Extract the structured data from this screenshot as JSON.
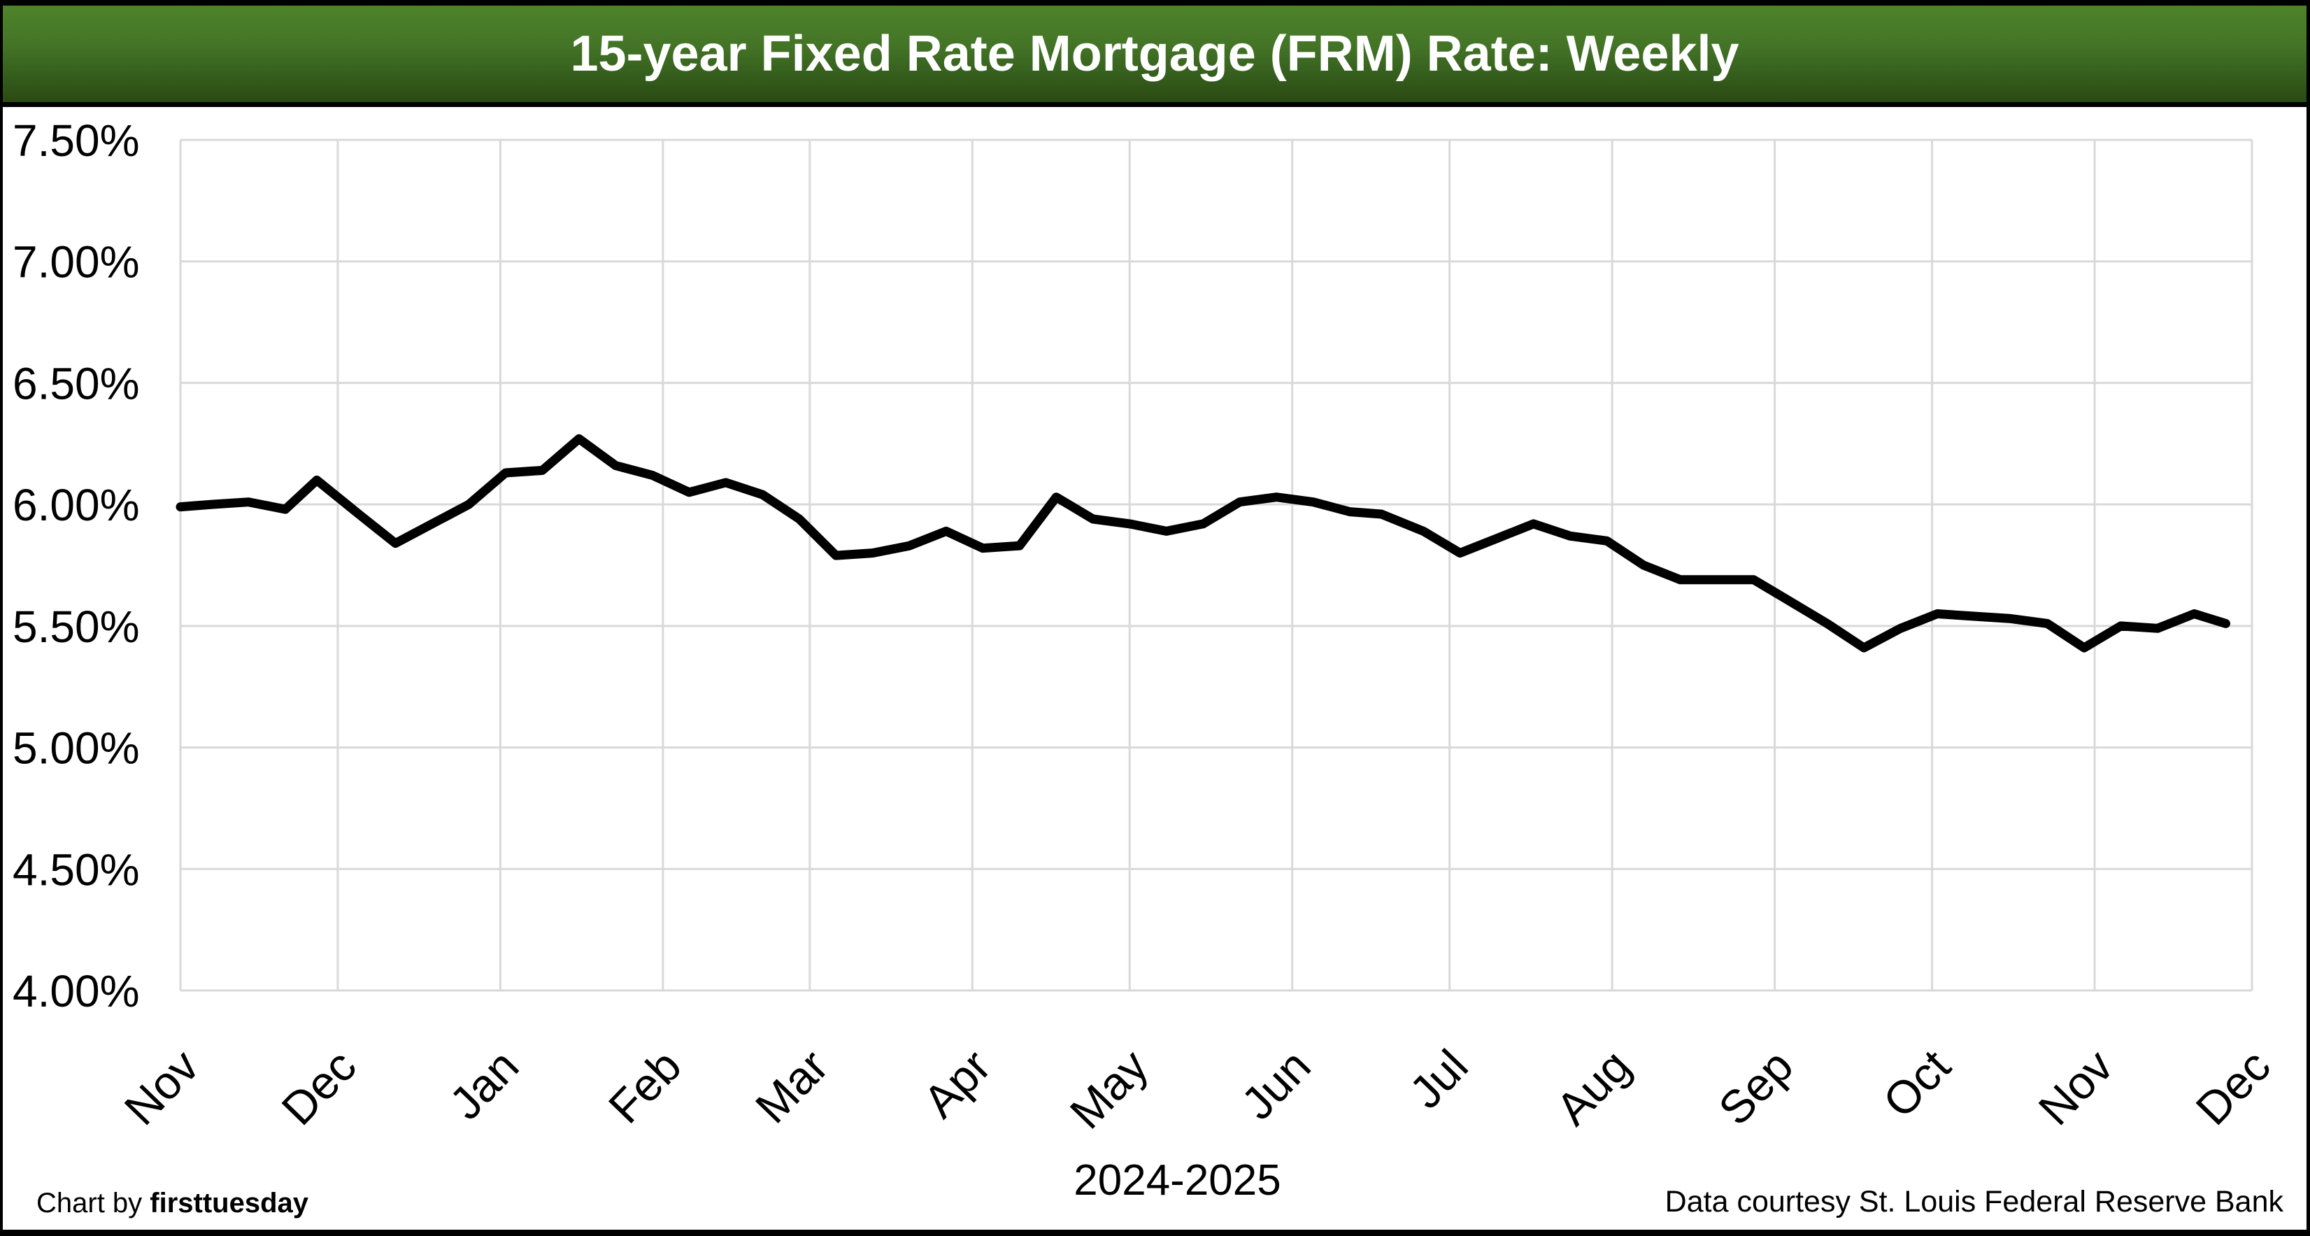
{
  "header": {
    "title": "15-year Fixed Rate Mortgage (FRM) Rate: Weekly"
  },
  "footer": {
    "credit_prefix": "Chart by ",
    "credit_brand": "firsttuesday",
    "source": "Data courtesy St. Louis Federal Reserve Bank"
  },
  "colors": {
    "header_gradient_top": "#4d8329",
    "header_gradient_bottom": "#2b4913",
    "frame": "#000000",
    "gridline": "#d9d9d9",
    "line": "#000000",
    "title_text": "#ffffff",
    "axis_text": "#000000"
  },
  "chart_data": {
    "type": "line",
    "title": "15-year Fixed Rate Mortgage (FRM) Rate: Weekly",
    "xlabel": "2024-2025",
    "ylabel": "",
    "ylim": [
      4.0,
      7.5
    ],
    "ytick_step": 0.5,
    "grid": true,
    "legend": false,
    "yticks": [
      {
        "value": 7.5,
        "label": "7.50%"
      },
      {
        "value": 7.0,
        "label": "7.00%"
      },
      {
        "value": 6.5,
        "label": "6.50%"
      },
      {
        "value": 6.0,
        "label": "6.00%"
      },
      {
        "value": 5.5,
        "label": "5.50%"
      },
      {
        "value": 5.0,
        "label": "5.00%"
      },
      {
        "value": 4.5,
        "label": "4.50%"
      },
      {
        "value": 4.0,
        "label": "4.00%"
      }
    ],
    "xticks": [
      {
        "label": "Nov",
        "date": "2024-11-01"
      },
      {
        "label": "Dec",
        "date": "2024-12-01"
      },
      {
        "label": "Jan",
        "date": "2025-01-01"
      },
      {
        "label": "Feb",
        "date": "2025-02-01"
      },
      {
        "label": "Mar",
        "date": "2025-03-01"
      },
      {
        "label": "Apr",
        "date": "2025-04-01"
      },
      {
        "label": "May",
        "date": "2025-05-01"
      },
      {
        "label": "Jun",
        "date": "2025-06-01"
      },
      {
        "label": "Jul",
        "date": "2025-07-01"
      },
      {
        "label": "Aug",
        "date": "2025-08-01"
      },
      {
        "label": "Sep",
        "date": "2025-09-01"
      },
      {
        "label": "Oct",
        "date": "2025-10-01"
      },
      {
        "label": "Nov",
        "date": "2025-11-01"
      },
      {
        "label": "Dec",
        "date": "2025-12-01"
      }
    ],
    "series": [
      {
        "name": "15-year FRM rate (weekly)",
        "color": "#000000",
        "points": [
          [
            "2024-11-01",
            5.99
          ],
          [
            "2024-11-07",
            6.0
          ],
          [
            "2024-11-14",
            6.01
          ],
          [
            "2024-11-21",
            5.98
          ],
          [
            "2024-11-27",
            6.1
          ],
          [
            "2024-12-05",
            5.96
          ],
          [
            "2024-12-12",
            5.84
          ],
          [
            "2024-12-19",
            5.92
          ],
          [
            "2024-12-26",
            6.0
          ],
          [
            "2025-01-02",
            6.13
          ],
          [
            "2025-01-09",
            6.14
          ],
          [
            "2025-01-16",
            6.27
          ],
          [
            "2025-01-23",
            6.16
          ],
          [
            "2025-01-30",
            6.12
          ],
          [
            "2025-02-06",
            6.05
          ],
          [
            "2025-02-13",
            6.09
          ],
          [
            "2025-02-20",
            6.04
          ],
          [
            "2025-02-27",
            5.94
          ],
          [
            "2025-03-06",
            5.79
          ],
          [
            "2025-03-13",
            5.8
          ],
          [
            "2025-03-20",
            5.83
          ],
          [
            "2025-03-27",
            5.89
          ],
          [
            "2025-04-03",
            5.82
          ],
          [
            "2025-04-10",
            5.83
          ],
          [
            "2025-04-17",
            6.03
          ],
          [
            "2025-04-24",
            5.94
          ],
          [
            "2025-05-01",
            5.92
          ],
          [
            "2025-05-08",
            5.89
          ],
          [
            "2025-05-15",
            5.92
          ],
          [
            "2025-05-22",
            6.01
          ],
          [
            "2025-05-29",
            6.03
          ],
          [
            "2025-06-05",
            6.01
          ],
          [
            "2025-06-12",
            5.97
          ],
          [
            "2025-06-18",
            5.96
          ],
          [
            "2025-06-26",
            5.89
          ],
          [
            "2025-07-03",
            5.8
          ],
          [
            "2025-07-10",
            5.86
          ],
          [
            "2025-07-17",
            5.92
          ],
          [
            "2025-07-24",
            5.87
          ],
          [
            "2025-07-31",
            5.85
          ],
          [
            "2025-08-07",
            5.75
          ],
          [
            "2025-08-14",
            5.69
          ],
          [
            "2025-08-21",
            5.69
          ],
          [
            "2025-08-28",
            5.69
          ],
          [
            "2025-09-04",
            5.6
          ],
          [
            "2025-09-11",
            5.51
          ],
          [
            "2025-09-18",
            5.41
          ],
          [
            "2025-09-25",
            5.49
          ],
          [
            "2025-10-02",
            5.55
          ],
          [
            "2025-10-09",
            5.54
          ],
          [
            "2025-10-16",
            5.53
          ],
          [
            "2025-10-23",
            5.51
          ],
          [
            "2025-10-30",
            5.41
          ],
          [
            "2025-11-06",
            5.5
          ],
          [
            "2025-11-13",
            5.49
          ],
          [
            "2025-11-20",
            5.55
          ],
          [
            "2025-11-26",
            5.51
          ]
        ]
      }
    ]
  }
}
